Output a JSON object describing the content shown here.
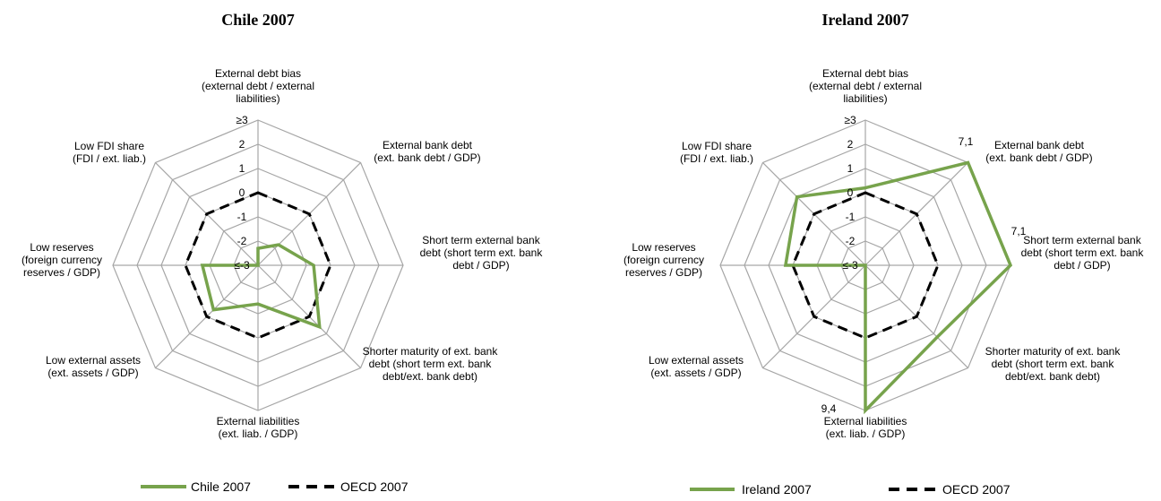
{
  "chart_data": [
    {
      "type": "radar",
      "title": "Chile 2007",
      "rlim": [
        -3,
        3
      ],
      "ticks": [
        "≤-3",
        "-2",
        "-1",
        "0",
        "1",
        "2",
        "≥3"
      ],
      "axes": [
        [
          "External debt bias",
          "(external debt / external",
          "liabilities)"
        ],
        [
          "External bank debt",
          "(ext. bank debt / GDP)"
        ],
        [
          "Short term external bank",
          "debt (short term ext. bank",
          "debt / GDP)"
        ],
        [
          "Shorter maturity of ext. bank",
          "debt (short term ext. bank",
          "debt/ext. bank debt)"
        ],
        [
          "External liabilities",
          "(ext. liab. / GDP)"
        ],
        [
          "Low external assets",
          "(ext. assets / GDP)"
        ],
        [
          "Low reserves",
          "(foreign currency",
          "reserves / GDP)"
        ],
        [
          "Low FDI share",
          "(FDI / ext. liab.)"
        ]
      ],
      "series": [
        {
          "name": "Chile 2007",
          "color": "#77a34c",
          "dash": "solid",
          "values": [
            -2.3,
            -1.8,
            -0.7,
            0.6,
            -1.4,
            -0.4,
            -0.7,
            -3.0
          ]
        },
        {
          "name": "OECD 2007",
          "color": "#000000",
          "dash": "dashed",
          "values": [
            0,
            0,
            0,
            0,
            0,
            0,
            0,
            0
          ]
        }
      ],
      "annotations": []
    },
    {
      "type": "radar",
      "title": "Ireland 2007",
      "rlim": [
        -3,
        3
      ],
      "ticks": [
        "≤-3",
        "-2",
        "-1",
        "0",
        "1",
        "2",
        "≥3"
      ],
      "axes": [
        [
          "External debt bias",
          "(external debt / external",
          "liabilities)"
        ],
        [
          "External bank debt",
          "(ext. bank debt / GDP)"
        ],
        [
          "Short term external bank",
          "debt (short term ext. bank",
          "debt / GDP)"
        ],
        [
          "Shorter maturity of ext. bank",
          "debt (short term ext. bank",
          "debt/ext. bank debt)"
        ],
        [
          "External liabilities",
          "(ext. liab. / GDP)"
        ],
        [
          "Low external assets",
          "(ext. assets / GDP)"
        ],
        [
          "Low reserves",
          "(foreign currency",
          "reserves / GDP)"
        ],
        [
          "Low FDI share",
          "(FDI / ext. liab.)"
        ]
      ],
      "series": [
        {
          "name": "Ireland 2007",
          "color": "#77a34c",
          "dash": "solid",
          "values": [
            0.2,
            3.0,
            3.0,
            1.2,
            3.0,
            -3.0,
            0.3,
            1.0
          ]
        },
        {
          "name": "OECD 2007",
          "color": "#000000",
          "dash": "dashed",
          "values": [
            0,
            0,
            0,
            0,
            0,
            0,
            0,
            0
          ]
        }
      ],
      "annotations": [
        {
          "axis": 1,
          "text": "7,1"
        },
        {
          "axis": 2,
          "text": "7,1"
        },
        {
          "axis": 4,
          "text": "9,4"
        }
      ]
    }
  ]
}
